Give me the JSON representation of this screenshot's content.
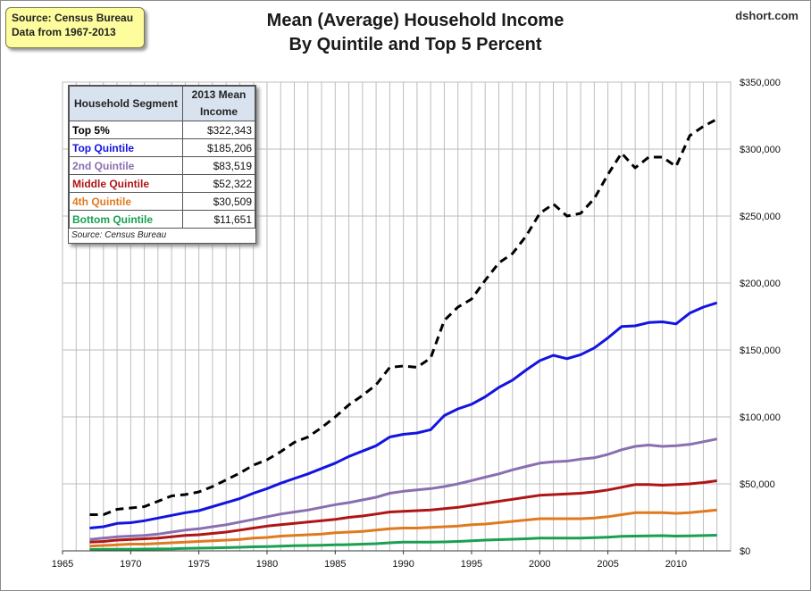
{
  "source_box": {
    "line1": "Source: Census Bureau",
    "line2": "Data from 1967-2013"
  },
  "title": {
    "line1": "Mean (Average) Household Income",
    "line2": "By Quintile and Top 5 Percent"
  },
  "site": "dshort.com",
  "legend_table": {
    "headers": [
      "Household Segment",
      "2013 Mean Income"
    ],
    "rows": [
      {
        "name": "Top 5%",
        "value": "$322,343",
        "color": "#000000"
      },
      {
        "name": "Top Quintile",
        "value": "$185,206",
        "color": "#1414e0"
      },
      {
        "name": "2nd Quintile",
        "value": "$83,519",
        "color": "#8a6fb0"
      },
      {
        "name": "Middle Quintile",
        "value": "$52,322",
        "color": "#b01515"
      },
      {
        "name": "4th Quintile",
        "value": "$30,509",
        "color": "#e07a1f"
      },
      {
        "name": "Bottom Quintile",
        "value": "$11,651",
        "color": "#1aa050"
      }
    ],
    "note": "Source: Census Bureau"
  },
  "chart_data": {
    "type": "line",
    "title": "Mean (Average) Household Income By Quintile and Top 5 Percent",
    "xlabel": "",
    "ylabel": "",
    "xlim": [
      1965,
      2014
    ],
    "ylim": [
      0,
      350000
    ],
    "x_ticks": [
      1965,
      1970,
      1975,
      1980,
      1985,
      1990,
      1995,
      2000,
      2005,
      2010
    ],
    "y_ticks": [
      0,
      50000,
      100000,
      150000,
      200000,
      250000,
      300000,
      350000
    ],
    "y_tick_labels": [
      "$0",
      "$50,000",
      "$100,000",
      "$150,000",
      "$200,000",
      "$250,000",
      "$300,000",
      "$350,000"
    ],
    "x": [
      1967,
      1968,
      1969,
      1970,
      1971,
      1972,
      1973,
      1974,
      1975,
      1976,
      1977,
      1978,
      1979,
      1980,
      1981,
      1982,
      1983,
      1984,
      1985,
      1986,
      1987,
      1988,
      1989,
      1990,
      1991,
      1992,
      1993,
      1994,
      1995,
      1996,
      1997,
      1998,
      1999,
      2000,
      2001,
      2002,
      2003,
      2004,
      2005,
      2006,
      2007,
      2008,
      2009,
      2010,
      2011,
      2012,
      2013
    ],
    "series": [
      {
        "name": "Top 5%",
        "color": "#000000",
        "dashed": true,
        "values": [
          27000,
          27000,
          31000,
          32000,
          33000,
          37000,
          41000,
          42000,
          44000,
          48000,
          53000,
          58000,
          64000,
          68000,
          74000,
          81000,
          85000,
          92000,
          100000,
          109000,
          116000,
          124000,
          137000,
          138000,
          137000,
          144000,
          172000,
          182000,
          188000,
          202000,
          215000,
          222000,
          235000,
          252000,
          259000,
          250000,
          252000,
          263000,
          281000,
          297000,
          286000,
          294000,
          294000,
          287000,
          310000,
          317000,
          322343
        ]
      },
      {
        "name": "Top Quintile",
        "color": "#1414e0",
        "dashed": false,
        "values": [
          17000,
          18000,
          20500,
          21000,
          22500,
          24500,
          26500,
          28500,
          30000,
          33000,
          36000,
          39000,
          43000,
          46500,
          50500,
          54000,
          57500,
          61500,
          65500,
          70500,
          74500,
          78500,
          85000,
          87000,
          88000,
          90500,
          101000,
          106000,
          109500,
          115000,
          122000,
          127500,
          135000,
          142000,
          146000,
          143500,
          146500,
          151500,
          159000,
          167500,
          168000,
          170500,
          171000,
          169500,
          177500,
          182000,
          185206
        ]
      },
      {
        "name": "2nd Quintile",
        "color": "#8a6fb0",
        "dashed": false,
        "values": [
          8500,
          9500,
          10500,
          11000,
          11500,
          12500,
          14000,
          15500,
          16500,
          18000,
          19500,
          21500,
          23500,
          25500,
          27500,
          29000,
          30500,
          32500,
          34500,
          36000,
          38000,
          40000,
          43000,
          44500,
          45500,
          46500,
          48000,
          50000,
          52500,
          55000,
          57500,
          60500,
          63000,
          65500,
          66500,
          67000,
          68500,
          69500,
          72000,
          75500,
          78000,
          79000,
          78000,
          78500,
          79500,
          81500,
          83519
        ]
      },
      {
        "name": "Middle Quintile",
        "color": "#b01515",
        "dashed": false,
        "values": [
          6500,
          7000,
          8000,
          8500,
          9000,
          9500,
          10500,
          11500,
          12000,
          13000,
          14000,
          15500,
          17000,
          18500,
          19500,
          20500,
          21500,
          22500,
          23500,
          25000,
          26000,
          27500,
          29000,
          29500,
          30000,
          30500,
          31500,
          32500,
          34000,
          35500,
          37000,
          38500,
          40000,
          41500,
          42000,
          42500,
          43000,
          44000,
          45500,
          47500,
          49500,
          49500,
          49000,
          49500,
          50000,
          51000,
          52322
        ]
      },
      {
        "name": "4th Quintile",
        "color": "#e07a1f",
        "dashed": false,
        "values": [
          3500,
          4000,
          4500,
          5000,
          5000,
          5500,
          6000,
          6500,
          7000,
          7500,
          8000,
          8500,
          9500,
          10000,
          11000,
          11500,
          12000,
          12500,
          13500,
          14000,
          14500,
          15500,
          16500,
          17000,
          17000,
          17500,
          18000,
          18500,
          19500,
          20000,
          21000,
          22000,
          23000,
          24000,
          24000,
          24000,
          24000,
          24500,
          25500,
          27000,
          28500,
          28500,
          28500,
          28000,
          28500,
          29500,
          30509
        ]
      },
      {
        "name": "Bottom Quintile",
        "color": "#1aa050",
        "dashed": false,
        "values": [
          1000,
          1100,
          1200,
          1200,
          1300,
          1400,
          1500,
          1800,
          2000,
          2200,
          2400,
          2700,
          3000,
          3200,
          3500,
          3800,
          4000,
          4200,
          4500,
          4700,
          5000,
          5300,
          6000,
          6500,
          6500,
          6500,
          6700,
          7000,
          7500,
          8000,
          8300,
          8700,
          9000,
          9500,
          9500,
          9500,
          9500,
          9800,
          10200,
          10800,
          11000,
          11200,
          11300,
          11000,
          11200,
          11400,
          11651
        ]
      }
    ]
  }
}
